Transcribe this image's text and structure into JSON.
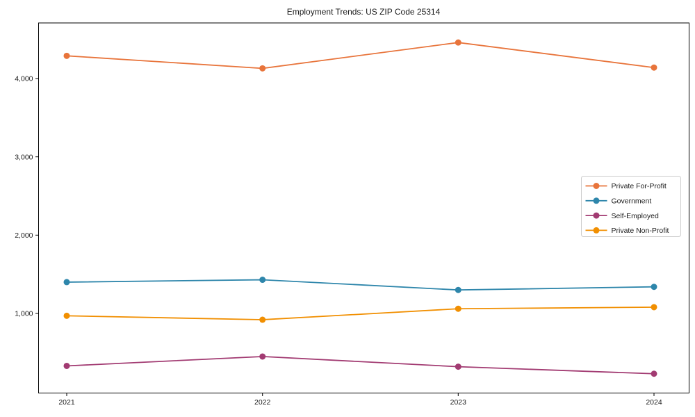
{
  "chart_data": {
    "type": "line",
    "title": "Employment Trends: US ZIP Code 25314",
    "xlabel": "",
    "ylabel": "",
    "categories": [
      "2021",
      "2022",
      "2023",
      "2024"
    ],
    "y_ticks": [
      {
        "value": 1000,
        "label": "1,000"
      },
      {
        "value": 2000,
        "label": "2,000"
      },
      {
        "value": 3000,
        "label": "3,000"
      },
      {
        "value": 4000,
        "label": "4,000"
      }
    ],
    "ylim": [
      -20,
      4710
    ],
    "grid": false,
    "legend_position": "center-right",
    "frame": {
      "box": true,
      "spine_color": "#000000",
      "legend_border_color": "#cccccc",
      "legend_bg": "#ffffff"
    },
    "series": [
      {
        "name": "Private For-Profit",
        "color": "#e8743b",
        "values": [
          4290,
          4130,
          4460,
          4140
        ]
      },
      {
        "name": "Government",
        "color": "#2e86ab",
        "values": [
          1400,
          1430,
          1300,
          1340
        ]
      },
      {
        "name": "Self-Employed",
        "color": "#a23b72",
        "values": [
          330,
          450,
          320,
          230
        ]
      },
      {
        "name": "Private Non-Profit",
        "color": "#f18f01",
        "values": [
          970,
          920,
          1060,
          1080
        ]
      }
    ]
  }
}
